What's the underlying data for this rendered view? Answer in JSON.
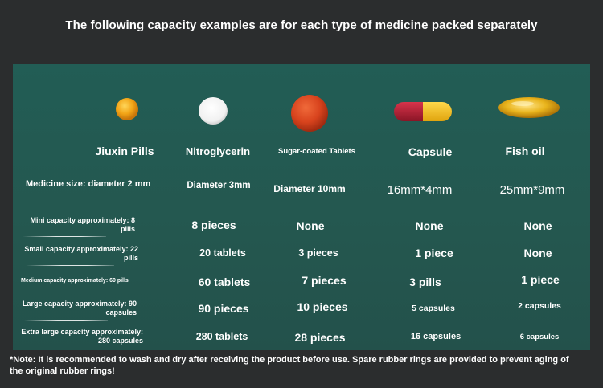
{
  "title": "The following capacity examples are for each type of medicine packed separately",
  "columns": [
    {
      "label": "Jiuxin Pills",
      "icon": "orange-pill-icon"
    },
    {
      "label": "Nitroglycerin",
      "icon": "white-tablet-icon"
    },
    {
      "label": "Sugar-coated Tablets",
      "icon": "red-tablet-icon"
    },
    {
      "label": "Capsule",
      "icon": "capsule-icon"
    },
    {
      "label": "Fish oil",
      "icon": "softgel-icon"
    }
  ],
  "size_row": {
    "label": "Medicine size: diameter 2 mm",
    "values": [
      "Diameter 3mm",
      "Diameter 10mm",
      "16mm*4mm",
      "25mm*9mm"
    ]
  },
  "rows": [
    {
      "label": "Mini capacity approximately: 8 pills",
      "values": [
        "8 pieces",
        "None",
        "None",
        "None"
      ]
    },
    {
      "label": "Small capacity approximately: 22 pills",
      "values": [
        "20 tablets",
        "3 pieces",
        "1 piece",
        "None"
      ]
    },
    {
      "label": "Medium capacity approximately: 60 pills",
      "values": [
        "60 tablets",
        "7 pieces",
        "3 pills",
        "1 piece"
      ]
    },
    {
      "label": "Large capacity approximately: 90 capsules",
      "values": [
        "90 pieces",
        "10 pieces",
        "5 capsules",
        "2 capsules"
      ]
    },
    {
      "label": "Extra large capacity approximately: 280 capsules",
      "values": [
        "280 tablets",
        "28 pieces",
        "16 capsules",
        "6 capsules"
      ]
    }
  ],
  "note": "*Note: It is recommended to wash and dry after receiving the product before use. Spare rubber rings are provided to prevent aging of the original rubber rings!",
  "colors": {
    "background": "#2b2d2e",
    "panel": "#235a53",
    "text": "#ffffff"
  }
}
